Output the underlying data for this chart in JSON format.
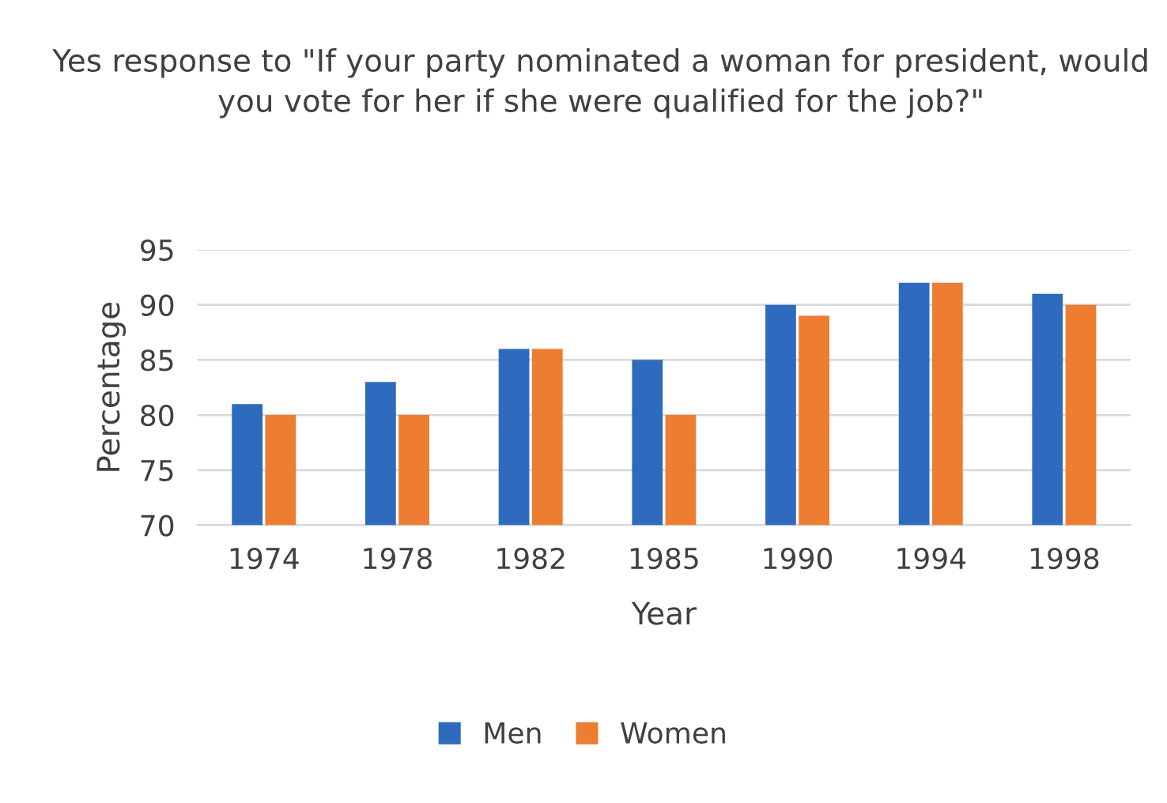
{
  "chart_data": {
    "type": "bar",
    "title": "Yes response to \"If your party nominated a woman for president, would you vote for her if she were qualified for the job?\"",
    "xlabel": "Year",
    "ylabel": "Percentage",
    "categories": [
      "1974",
      "1978",
      "1982",
      "1985",
      "1990",
      "1994",
      "1998"
    ],
    "series": [
      {
        "name": "Men",
        "color": "#2e6bbf",
        "values": [
          81,
          83,
          86,
          85,
          90,
          92,
          91
        ]
      },
      {
        "name": "Women",
        "color": "#ed7d31",
        "values": [
          80,
          80,
          86,
          80,
          89,
          92,
          90
        ]
      }
    ],
    "ylim": [
      70,
      95
    ],
    "yticks": [
      70,
      75,
      80,
      85,
      90,
      95
    ],
    "grid": "y",
    "legend": "bottom"
  }
}
